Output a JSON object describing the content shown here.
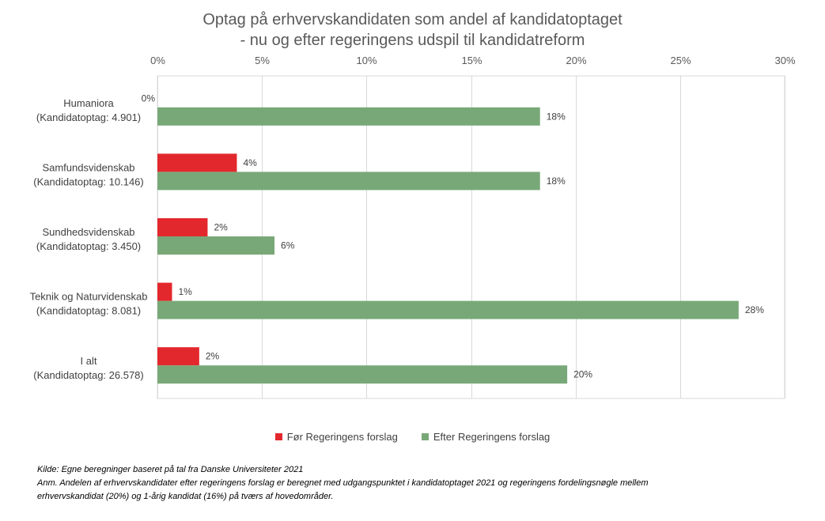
{
  "chart_data": {
    "type": "bar",
    "orientation": "horizontal",
    "title_line1": "Optag på erhvervskandidaten som andel af kandidatoptaget",
    "title_line2": "- nu og efter regeringens udspil til kandidatreform",
    "categories": [
      {
        "name": "Humaniora",
        "detail": "(Kandidatoptag: 4.901)"
      },
      {
        "name": "Samfundsvidenskab",
        "detail": "(Kandidatoptag: 10.146)"
      },
      {
        "name": "Sundhedsvidenskab",
        "detail": "(Kandidatoptag: 3.450)"
      },
      {
        "name": "Teknik og Naturvidenskab",
        "detail": "(Kandidatoptag: 8.081)"
      },
      {
        "name": "I alt",
        "detail": "(Kandidatoptag: 26.578)"
      }
    ],
    "series": [
      {
        "name": "Før Regeringens forslag",
        "color": "#e3282d",
        "values": [
          0,
          3.8,
          2.4,
          0.7,
          2.0
        ],
        "labels": [
          "0%",
          "4%",
          "2%",
          "1%",
          "2%"
        ]
      },
      {
        "name": "Efter Regeringens forslag",
        "color": "#78a878",
        "values": [
          18.3,
          18.3,
          5.6,
          27.8,
          19.6
        ],
        "labels": [
          "18%",
          "18%",
          "6%",
          "28%",
          "20%"
        ]
      }
    ],
    "xlim": [
      0,
      30
    ],
    "ticks": [
      0,
      5,
      10,
      15,
      20,
      25,
      30
    ],
    "tick_labels": [
      "0%",
      "5%",
      "10%",
      "15%",
      "20%",
      "25%",
      "30%"
    ],
    "axis_position": "top",
    "grid": true,
    "legend_position": "bottom"
  },
  "notes": {
    "source": "Kilde: Egne beregninger baseret på tal fra Danske Universiteter 2021",
    "remark_line1": "Anm. Andelen af erhvervskandidater efter regeringens forslag er beregnet med udgangspunktet i kandidatoptaget 2021 og regeringens fordelingsnøgle mellem",
    "remark_line2": "erhvervskandidat (20%) og 1-årig kandidat (16%) på tværs af hovedområder."
  }
}
